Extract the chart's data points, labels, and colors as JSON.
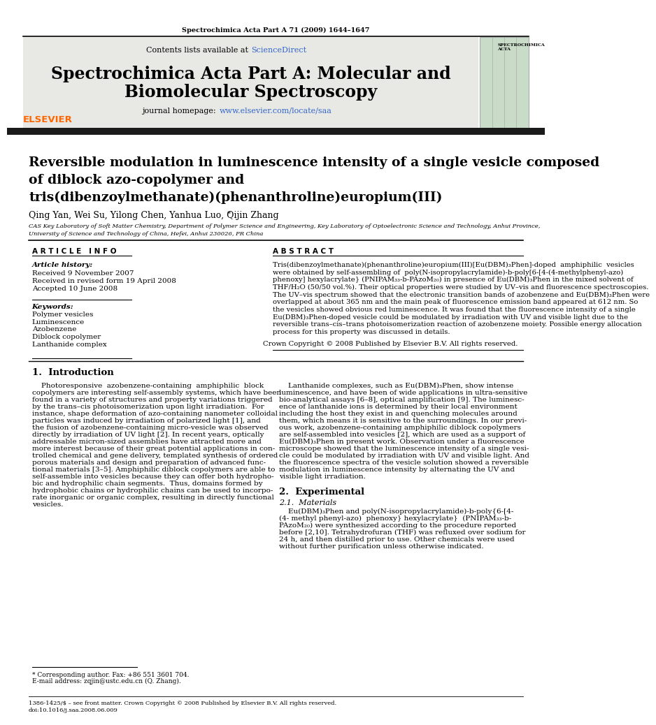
{
  "journal_header_text": "Spectrochimica Acta Part A 71 (2009) 1644–1647",
  "contents_text": "Contents lists available at ",
  "sciencedirect_text": "ScienceDirect",
  "sciencedirect_color": "#3366cc",
  "journal_name_line1": "Spectrochimica Acta Part A: Molecular and",
  "journal_name_line2": "Biomolecular Spectroscopy",
  "journal_homepage_prefix": "journal homepage: ",
  "journal_homepage_url": "www.elsevier.com/locate/saa",
  "article_title_line1": "Reversible modulation in luminescence intensity of a single vesicle composed",
  "article_title_line2": "of diblock azo-copolymer and",
  "article_title_line3": "tris(dibenzoylmethanate)(phenanthroline)europium(III)",
  "authors": "Qing Yan, Wei Su, Yilong Chen, Yanhua Luo, Qijin Zhang",
  "affiliation1": "CAS Key Laboratory of Soft Matter Chemistry, Department of Polymer Science and Engineering, Key Laboratory of Optoelectronic Science and Technology, Anhui Province,",
  "affiliation2": "University of Science and Technology of China, Hefei, Anhui 230026, PR China",
  "article_info_header": "A R T I C L E   I N F O",
  "article_history_label": "Article history:",
  "received1": "Received 9 November 2007",
  "received2": "Received in revised form 19 April 2008",
  "accepted": "Accepted 10 June 2008",
  "keywords_label": "Keywords:",
  "keywords": [
    "Polymer vesicles",
    "Luminescence",
    "Azobenzene",
    "Diblock copolymer",
    "Lanthanide complex"
  ],
  "abstract_header": "A B S T R A C T",
  "abstract_lines": [
    "Tris(dibenzoylmethanate)(phenanthroline)europium(III)[Eu(DBM)₃Phen]-doped  amphiphilic  vesicles",
    "were obtained by self-assembling of  poly(N-isopropylacrylamide)-b-poly[6-[4-(4-methylphenyl-azo)",
    "phenoxy] hexylacrylate} (PNIPAM₃₃-b-PAzoM₂₀) in presence of Eu(DBM)₃Phen in the mixed solvent of",
    "THF/H₂O (50/50 vol.%). Their optical properties were studied by UV–vis and fluorescence spectroscopies.",
    "The UV–vis spectrum showed that the electronic transition bands of azobenzene and Eu(DBM)₃Phen were",
    "overlapped at about 365 nm and the main peak of fluorescence emission band appeared at 612 nm. So",
    "the vesicles showed obvious red luminescence. It was found that the fluorescence intensity of a single",
    "Eu(DBM)₃Phen-doped vesicle could be modulated by irradiation with UV and visible light due to the",
    "reversible trans–cis–trans photoisomerization reaction of azobenzene moiety. Possible energy allocation",
    "process for this property was discussed in details."
  ],
  "copyright_text": "Crown Copyright © 2008 Published by Elsevier B.V. All rights reserved.",
  "intro_header": "1.  Introduction",
  "intro_col1_lines": [
    "    Photoresponsive  azobenzene-containing  amphiphilic  block",
    "copolymers are interesting self-assembly systems, which have been",
    "found in a variety of structures and property variations triggered",
    "by the trans–cis photoisomerization upon light irradiation.  For",
    "instance, shape deformation of azo-containing nanometer colloidal",
    "particles was induced by irradiation of polarized light [1], and",
    "the fusion of azobenzene-containing micro-vesicle was observed",
    "directly by irradiation of UV light [2]. In recent years, optically",
    "addressable micron-sized assemblies have attracted more and",
    "more interest because of their great potential applications in con-",
    "trolled chemical and gene delivery, templated synthesis of ordered",
    "porous materials and design and preparation of advanced func-",
    "tional materials [3–5]. Amphiphilic diblock copolymers are able to",
    "self-assemble into vesicles because they can offer both hydropho-",
    "bic and hydrophilic chain segments.  Thus, domains formed by",
    "hydrophobic chains or hydrophilic chains can be used to incorpo-",
    "rate inorganic or organic complex, resulting in directly functional",
    "vesicles."
  ],
  "intro_col2_lines": [
    "    Lanthanide complexes, such as Eu(DBM)₃Phen, show intense",
    "luminescence, and have been of wide applications in ultra-sensitive",
    "bio-analytical assays [6–8], optical amplification [9]. The luminesc-",
    "ence of lanthanide ions is determined by their local environment",
    "including the host they exist in and quenching molecules around",
    "them, which means it is sensitive to the surroundings. In our previ-",
    "ous work, azobenzene-containing amphiphilic diblock copolymers",
    "are self-assembled into vesicles [2], which are used as a support of",
    "Eu(DBM)₃Phen in present work. Observation under a fluorescence",
    "microscope showed that the luminescence intensity of a single vesi-",
    "cle could be modulated by irradiation with UV and visible light. And",
    "the fluorescence spectra of the vesicle solution showed a reversible",
    "modulation in luminescence intensity by alternating the UV and",
    "visible light irradiation."
  ],
  "section2_header": "2.  Experimental",
  "section21_header": "2.1.  Materials",
  "section21_lines": [
    "    Eu(DBM)₃Phen and poly(N-isopropylacrylamide)-b-poly{6-[4-",
    "(4- methyl phenyl-azo)  phenoxy} hexylacrylate}  (PNIPAM₃₃-b-",
    "PAzoM₂₀) were synthesized according to the procedure reported",
    "before [2,10]. Tetrahydrofuran (THF) was refluxed over sodium for",
    "24 h, and then distilled prior to use. Other chemicals were used",
    "without further purification unless otherwise indicated."
  ],
  "footnote_star": "* Corresponding author. Fax: +86 551 3601 704.",
  "footnote_email": "E-mail address: zqjin@ustc.edu.cn (Q. Zhang).",
  "footer_issn": "1386-1425/$ – see front matter. Crown Copyright © 2008 Published by Elsevier B.V. All rights reserved.",
  "footer_doi": "doi:10.1016/j.saa.2008.06.009",
  "bg_color": "#ffffff",
  "gray_bg": "#e8e8e4",
  "dark_bar_color": "#1a1a1a",
  "text_color": "#000000",
  "link_color": "#3366cc",
  "elsevier_color": "#ff6600"
}
